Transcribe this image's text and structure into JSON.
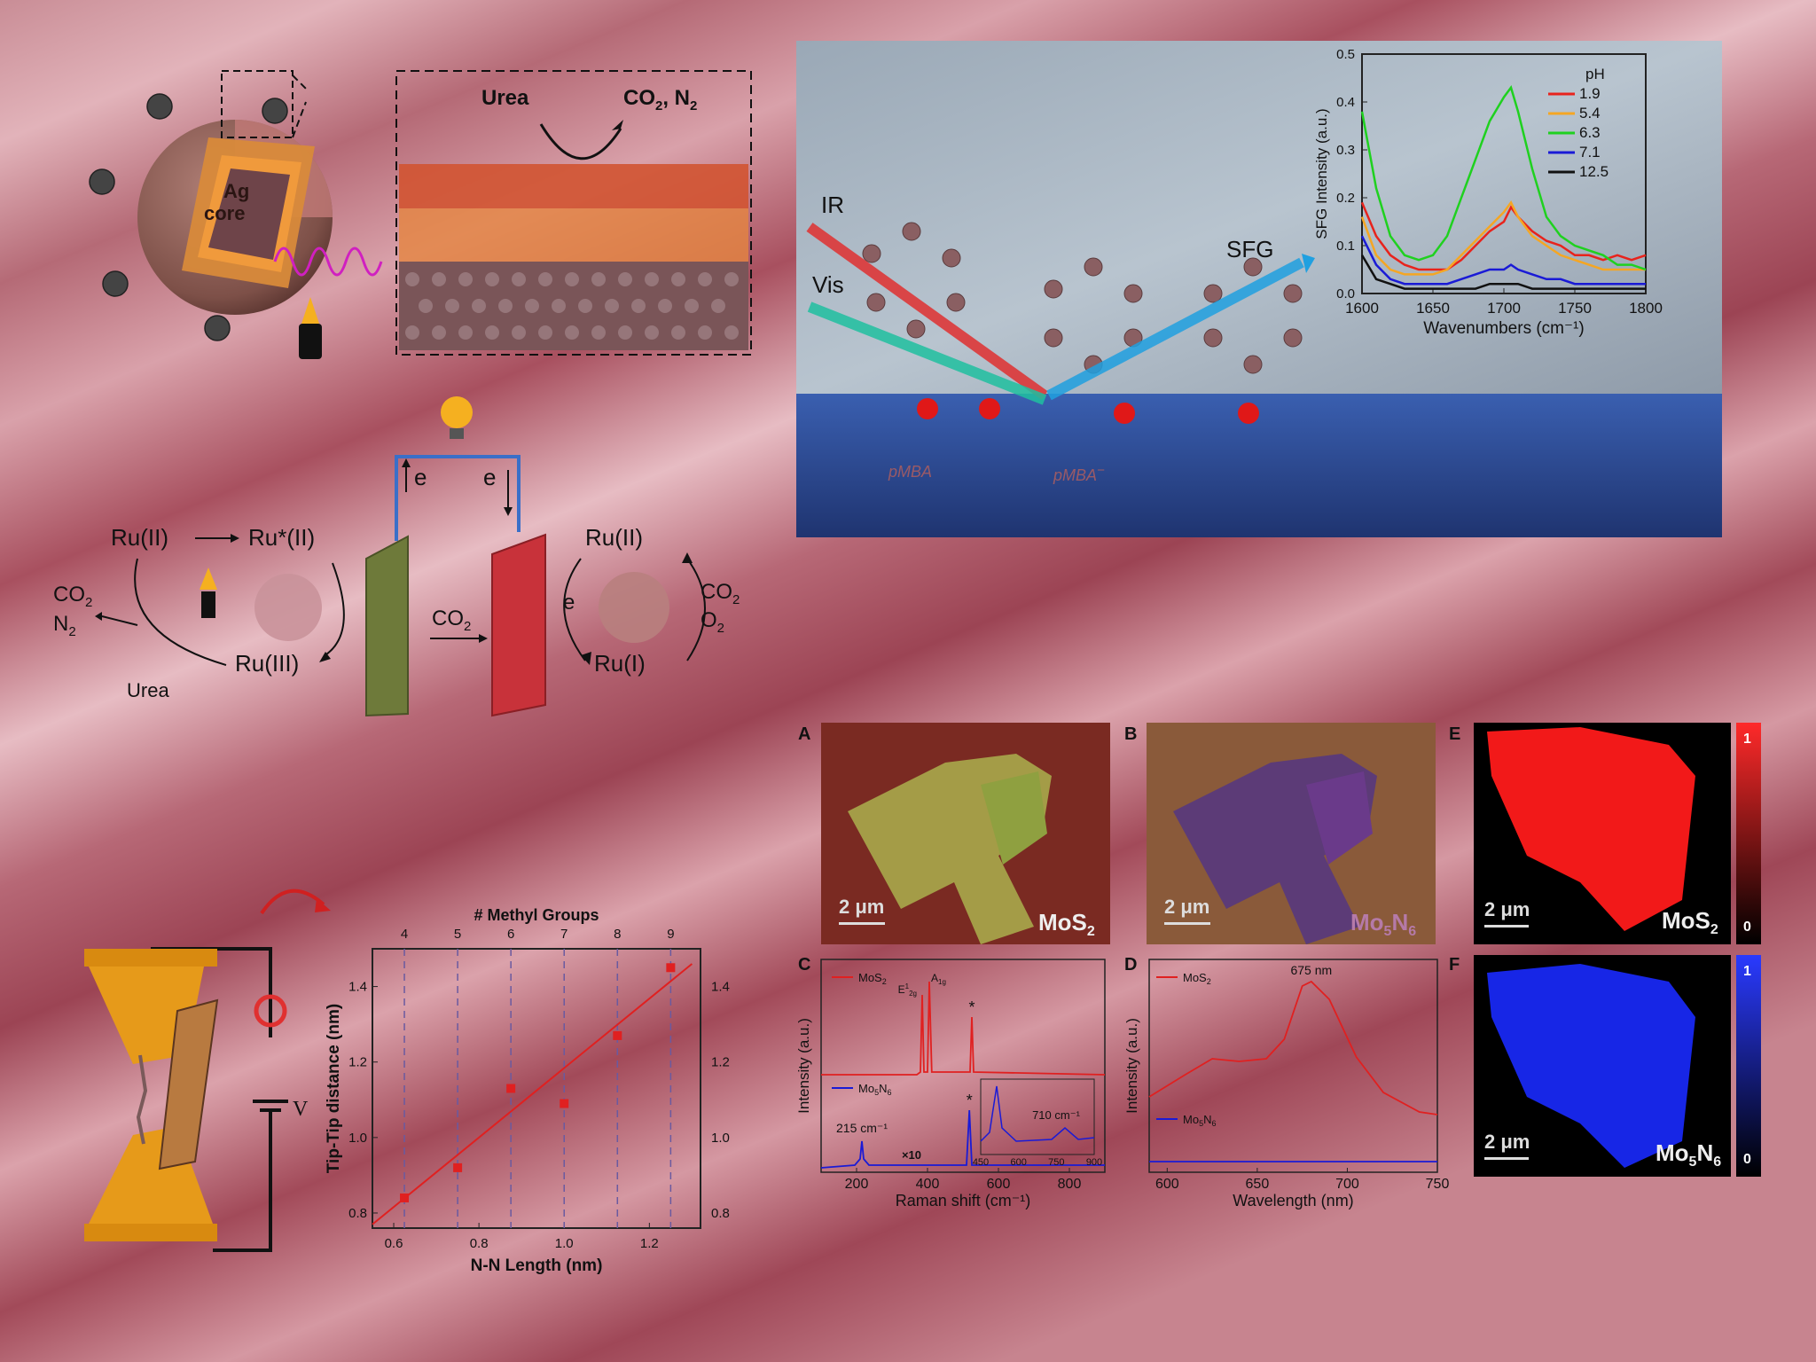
{
  "nanoparticle": {
    "core_line1": "Ag",
    "core_line2": "core",
    "inset_reactant": "Urea",
    "inset_product": "CO",
    "inset_product_sub": "2",
    "inset_product_tail": ", N",
    "inset_product_sub2": "2"
  },
  "cycle": {
    "ru2_left": "Ru(II)",
    "ru2_star": "Ru*(II)",
    "ru3": "Ru(III)",
    "co2_n2_a": "CO",
    "co2_n2_a_sub": "2",
    "co2_n2_b": "N",
    "co2_n2_b_sub": "2",
    "urea": "Urea",
    "electron_left": "e",
    "electron_right": "e",
    "co2_mid": "CO",
    "co2_mid_sub": "2",
    "ru2_right": "Ru(II)",
    "ru1": "Ru(I)",
    "electron_cycle": "e",
    "co2_right": "CO",
    "co2_right_sub": "2",
    "o2_right": "O",
    "o2_right_sub": "2"
  },
  "sfg_panel": {
    "ir_label": "IR",
    "vis_label": "Vis",
    "sfg_label": "SFG",
    "pmba": "pMBA",
    "pmba_minus": "pMBA",
    "pmba_minus_sup": "−"
  },
  "colors": {
    "ph19": "#e8231c",
    "ph54": "#f5a623",
    "ph63": "#1fd11f",
    "ph71": "#1a1ad6",
    "ph125": "#111111",
    "mos2_map": "#ff1a1a",
    "mo5n6_map": "#1a2aff"
  },
  "chart_data": [
    {
      "id": "sfg",
      "type": "line",
      "xlabel": "Wavenumbers (cm⁻¹)",
      "ylabel": "SFG Intensity (a.u.)",
      "xlim": [
        1600,
        1800
      ],
      "ylim": [
        0.0,
        0.5
      ],
      "xticks": [
        "1600",
        "1650",
        "1700",
        "1750",
        "1800"
      ],
      "yticks": [
        "0.0",
        "0.1",
        "0.2",
        "0.3",
        "0.4",
        "0.5"
      ],
      "legend_title": "pH",
      "x": [
        1600,
        1610,
        1620,
        1630,
        1640,
        1650,
        1660,
        1670,
        1680,
        1690,
        1700,
        1705,
        1710,
        1720,
        1730,
        1740,
        1750,
        1760,
        1770,
        1780,
        1790,
        1800
      ],
      "series": [
        {
          "name": "1.9",
          "values": [
            0.19,
            0.12,
            0.08,
            0.06,
            0.05,
            0.05,
            0.05,
            0.07,
            0.1,
            0.13,
            0.15,
            0.18,
            0.16,
            0.13,
            0.11,
            0.1,
            0.08,
            0.08,
            0.07,
            0.08,
            0.07,
            0.08
          ]
        },
        {
          "name": "5.4",
          "values": [
            0.16,
            0.08,
            0.05,
            0.04,
            0.04,
            0.04,
            0.05,
            0.08,
            0.11,
            0.14,
            0.17,
            0.19,
            0.16,
            0.12,
            0.1,
            0.08,
            0.07,
            0.06,
            0.05,
            0.05,
            0.05,
            0.05
          ]
        },
        {
          "name": "6.3",
          "values": [
            0.38,
            0.22,
            0.12,
            0.08,
            0.07,
            0.08,
            0.12,
            0.2,
            0.28,
            0.36,
            0.41,
            0.43,
            0.38,
            0.26,
            0.16,
            0.12,
            0.1,
            0.09,
            0.08,
            0.06,
            0.06,
            0.05
          ]
        },
        {
          "name": "7.1",
          "values": [
            0.12,
            0.06,
            0.03,
            0.02,
            0.02,
            0.02,
            0.02,
            0.03,
            0.04,
            0.05,
            0.05,
            0.06,
            0.05,
            0.04,
            0.03,
            0.03,
            0.02,
            0.02,
            0.02,
            0.02,
            0.02,
            0.02
          ]
        },
        {
          "name": "12.5",
          "values": [
            0.08,
            0.03,
            0.02,
            0.01,
            0.01,
            0.01,
            0.01,
            0.01,
            0.01,
            0.02,
            0.02,
            0.02,
            0.02,
            0.01,
            0.01,
            0.01,
            0.01,
            0.01,
            0.01,
            0.01,
            0.01,
            0.01
          ]
        }
      ]
    },
    {
      "id": "methyl",
      "type": "scatter",
      "xlabel": "N-N Length (nm)",
      "ylabel": "Tip-Tip distance (nm)",
      "top_label": "# Methyl Groups",
      "top_ticks": [
        "4",
        "5",
        "6",
        "7",
        "8",
        "9"
      ],
      "xlim": [
        0.55,
        1.32
      ],
      "ylim": [
        0.76,
        1.5
      ],
      "xticks": [
        "0.6",
        "0.8",
        "1.0",
        "1.2"
      ],
      "yticks": [
        "0.8",
        "1.0",
        "1.2",
        "1.4"
      ],
      "x": [
        0.625,
        0.75,
        0.875,
        1.0,
        1.125,
        1.25
      ],
      "values": [
        0.84,
        0.92,
        1.13,
        1.09,
        1.27,
        1.45
      ],
      "fit": [
        [
          0.55,
          0.77
        ],
        [
          1.3,
          1.46
        ]
      ]
    },
    {
      "id": "raman",
      "type": "line",
      "xlabel": "Raman shift (cm⁻¹)",
      "ylabel": "Intensity (a.u.)",
      "xlim": [
        100,
        900
      ],
      "xticks": [
        "200",
        "400",
        "600",
        "800"
      ],
      "series": [
        {
          "name": "MoS"
        },
        {
          "name": "Mo"
        }
      ],
      "annotations": {
        "e2g": "E",
        "e2g_sup": "1",
        "e2g_sub": "2g",
        "a1g": "A",
        "a1g_sub": "1g",
        "star1": "*",
        "star2": "*",
        "peak215": "215 cm⁻¹",
        "x10": "×10",
        "peak710": "710 cm⁻¹",
        "inset_xticks": [
          "450",
          "600",
          "750",
          "900"
        ]
      }
    },
    {
      "id": "pl",
      "type": "line",
      "xlabel": "Wavelength (nm)",
      "ylabel": "Intensity (a.u.)",
      "xlim": [
        590,
        750
      ],
      "xticks": [
        "600",
        "650",
        "700",
        "750"
      ],
      "series": [
        {
          "name": "MoS"
        },
        {
          "name": "Mo"
        }
      ],
      "annotations": {
        "peak": "675 nm"
      }
    }
  ],
  "panels": {
    "letters": [
      "A",
      "B",
      "C",
      "D",
      "E",
      "F"
    ],
    "scale": "2 μm",
    "mos2": "MoS",
    "mos2_sub": "2",
    "mo5n6_a": "Mo",
    "mo5n6_sub1": "5",
    "mo5n6_b": "N",
    "mo5n6_sub2": "6",
    "colorbar_top": "1",
    "colorbar_bottom": "0"
  },
  "junction": {
    "v_label": "V"
  }
}
